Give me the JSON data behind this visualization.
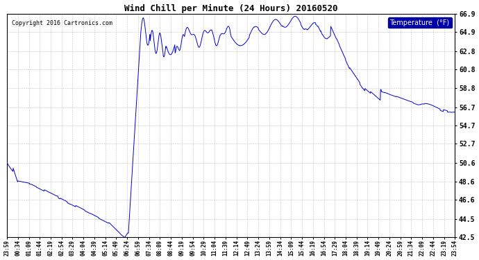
{
  "title": "Wind Chill per Minute (24 Hours) 20160520",
  "copyright": "Copyright 2016 Cartronics.com",
  "legend_label": "Temperature  (°F)",
  "line_color": "#0000cc",
  "background_color": "#ffffff",
  "plot_bg_color": "#ffffff",
  "grid_color": "#aaaaaa",
  "ylim": [
    42.5,
    66.9
  ],
  "yticks": [
    42.5,
    44.5,
    46.6,
    48.6,
    50.6,
    52.7,
    54.7,
    56.7,
    58.8,
    60.8,
    62.8,
    64.9,
    66.9
  ],
  "xtick_labels": [
    "23:59",
    "00:34",
    "01:09",
    "01:44",
    "02:19",
    "02:54",
    "03:29",
    "04:04",
    "04:39",
    "05:14",
    "05:49",
    "06:24",
    "06:59",
    "07:34",
    "08:09",
    "08:44",
    "09:19",
    "09:54",
    "10:29",
    "11:04",
    "11:39",
    "12:14",
    "12:49",
    "13:24",
    "13:59",
    "14:34",
    "15:09",
    "15:44",
    "16:19",
    "16:54",
    "17:29",
    "18:04",
    "18:39",
    "19:14",
    "19:49",
    "20:24",
    "20:59",
    "21:34",
    "22:09",
    "22:44",
    "23:19",
    "23:54"
  ],
  "figsize": [
    6.9,
    3.75
  ],
  "dpi": 100
}
